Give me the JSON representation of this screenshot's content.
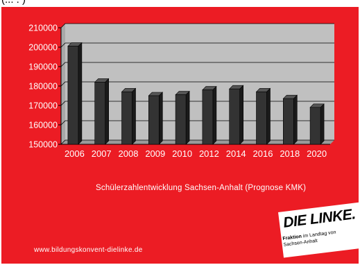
{
  "header_fragment": "(... . )",
  "caption": "Schülerzahlentwicklung Sachsen-Anhalt (Prognose KMK)",
  "footer_url": "www.bildungskonvent-dielinke.de",
  "logo": {
    "brand": "DIE LINKE.",
    "sub_bold": "Fraktion",
    "sub_rest": " im Landtag von Sachsen-Anhalt"
  },
  "colors": {
    "background": "#ec1c24",
    "plot_area": "#c0c0c0",
    "bar": "#333333",
    "text": "#ffffff"
  },
  "chart_data": {
    "type": "bar",
    "categories": [
      "2006",
      "2007",
      "2008",
      "2009",
      "2010",
      "2012",
      "2014",
      "2016",
      "2018",
      "2020"
    ],
    "values": [
      200500,
      182000,
      177000,
      175000,
      175500,
      178000,
      178500,
      177000,
      173500,
      169000
    ],
    "yticks": [
      "150000",
      "160000",
      "170000",
      "180000",
      "190000",
      "200000",
      "210000"
    ],
    "ylim": [
      150000,
      210000
    ],
    "grid": true
  }
}
